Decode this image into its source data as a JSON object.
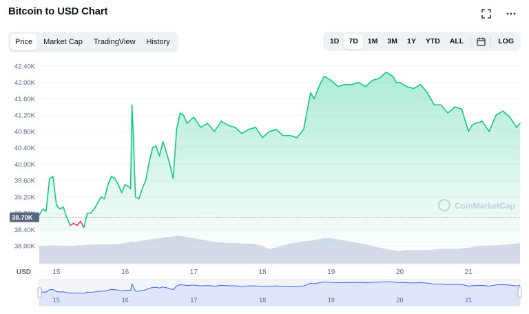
{
  "header": {
    "title": "Bitcoin to USD Chart",
    "fullscreen_icon": "fullscreen-icon",
    "more_icon": "more-horizontal-icon"
  },
  "tabs": [
    {
      "label": "Price",
      "active": true
    },
    {
      "label": "Market Cap",
      "active": false
    },
    {
      "label": "TradingView",
      "active": false
    },
    {
      "label": "History",
      "active": false
    }
  ],
  "ranges": [
    {
      "label": "1D",
      "active": false
    },
    {
      "label": "7D",
      "active": true
    },
    {
      "label": "1M",
      "active": false
    },
    {
      "label": "3M",
      "active": false
    },
    {
      "label": "1Y",
      "active": false
    },
    {
      "label": "YTD",
      "active": false
    },
    {
      "label": "ALL",
      "active": false
    }
  ],
  "calendar_icon": "calendar-icon",
  "log_label": "LOG",
  "watermark": "CoinMarketCap",
  "colors": {
    "up_line": "#16c784",
    "down_line": "#ea3943",
    "volume": "#cfd6e4",
    "navigator_line": "#3861fb",
    "navigator_fill": "#dfe6fb"
  },
  "chart_data": {
    "type": "area",
    "currency_label": "USD",
    "y_ticks": [
      "42.40K",
      "42.00K",
      "41.60K",
      "41.20K",
      "40.80K",
      "40.40K",
      "40.00K",
      "39.60K",
      "39.20K",
      "38.80K",
      "38.40K",
      "38.00K"
    ],
    "ylim": [
      38000,
      42400
    ],
    "x_ticks": [
      "15",
      "16",
      "17",
      "18",
      "19",
      "20",
      "21"
    ],
    "x_tick_days": [
      15,
      16,
      17,
      18,
      19,
      20,
      21
    ],
    "xlim": [
      14.75,
      21.75
    ],
    "baseline_value": 38700,
    "baseline_label": "38.70K",
    "series": [
      {
        "x": [
          14.75,
          14.8,
          14.85,
          14.9,
          14.95,
          15.0,
          15.05,
          15.1,
          15.15,
          15.2,
          15.25,
          15.3,
          15.35,
          15.4,
          15.45,
          15.5,
          15.55,
          15.6,
          15.65,
          15.7,
          15.75,
          15.8,
          15.85,
          15.9,
          15.95,
          16.0,
          16.05,
          16.08,
          16.1,
          16.12,
          16.15,
          16.2,
          16.25,
          16.3,
          16.35,
          16.4,
          16.45,
          16.5,
          16.55,
          16.6,
          16.65,
          16.7,
          16.75,
          16.8,
          16.85,
          16.9,
          17.0,
          17.1,
          17.2,
          17.3,
          17.4,
          17.5,
          17.6,
          17.7,
          17.8,
          17.9,
          18.0,
          18.1,
          18.2,
          18.3,
          18.4,
          18.5,
          18.6,
          18.7,
          18.75,
          18.8,
          18.85,
          18.9,
          19.0,
          19.1,
          19.2,
          19.3,
          19.4,
          19.5,
          19.6,
          19.7,
          19.8,
          19.85,
          19.9,
          19.95,
          20.0,
          20.1,
          20.2,
          20.3,
          20.4,
          20.5,
          20.6,
          20.7,
          20.8,
          20.9,
          21.0,
          21.05,
          21.1,
          21.2,
          21.3,
          21.4,
          21.5,
          21.6,
          21.7,
          21.75
        ],
        "values": [
          38750,
          38900,
          38850,
          39650,
          39700,
          39000,
          38900,
          38950,
          38700,
          38500,
          38550,
          38500,
          38600,
          38450,
          38800,
          38800,
          38900,
          39050,
          39200,
          39150,
          39500,
          39700,
          39650,
          39500,
          39300,
          39500,
          39450,
          39400,
          41450,
          40700,
          39200,
          39150,
          39400,
          39600,
          40050,
          40400,
          40450,
          40200,
          40550,
          40300,
          40000,
          39650,
          40850,
          41250,
          41200,
          41000,
          41150,
          40900,
          41000,
          40800,
          41050,
          40950,
          40900,
          40750,
          40850,
          40900,
          40650,
          40800,
          40850,
          40700,
          40700,
          40650,
          40850,
          41750,
          41600,
          41800,
          42000,
          42150,
          42050,
          41900,
          41950,
          41950,
          42000,
          41900,
          42050,
          42100,
          42250,
          42200,
          42150,
          42000,
          42000,
          41900,
          41850,
          41950,
          41750,
          41450,
          41450,
          41250,
          41400,
          41350,
          40800,
          40950,
          41000,
          41050,
          40800,
          41200,
          41300,
          41150,
          40900,
          41000
        ],
        "volume": [
          0.6,
          0.6,
          0.6,
          0.62,
          0.62,
          0.62,
          0.6,
          0.6,
          0.6,
          0.6,
          0.6,
          0.62,
          0.62,
          0.62,
          0.64,
          0.64,
          0.64,
          0.66,
          0.66,
          0.66,
          0.66,
          0.66,
          0.66,
          0.66,
          0.68,
          0.7,
          0.72,
          0.74,
          0.75,
          0.74,
          0.74,
          0.76,
          0.78,
          0.8,
          0.82,
          0.84,
          0.84,
          0.86,
          0.88,
          0.9,
          0.9,
          0.92,
          0.94,
          0.94,
          0.92,
          0.9,
          0.86,
          0.82,
          0.78,
          0.74,
          0.72,
          0.7,
          0.7,
          0.68,
          0.68,
          0.66,
          0.6,
          0.5,
          0.55,
          0.62,
          0.68,
          0.72,
          0.76,
          0.78,
          0.8,
          0.82,
          0.84,
          0.86,
          0.86,
          0.82,
          0.78,
          0.74,
          0.7,
          0.66,
          0.6,
          0.55,
          0.5,
          0.48,
          0.46,
          0.44,
          0.44,
          0.46,
          0.46,
          0.46,
          0.46,
          0.48,
          0.5,
          0.5,
          0.5,
          0.52,
          0.54,
          0.56,
          0.58,
          0.6,
          0.62,
          0.62,
          0.64,
          0.66,
          0.68,
          0.7
        ]
      }
    ]
  }
}
